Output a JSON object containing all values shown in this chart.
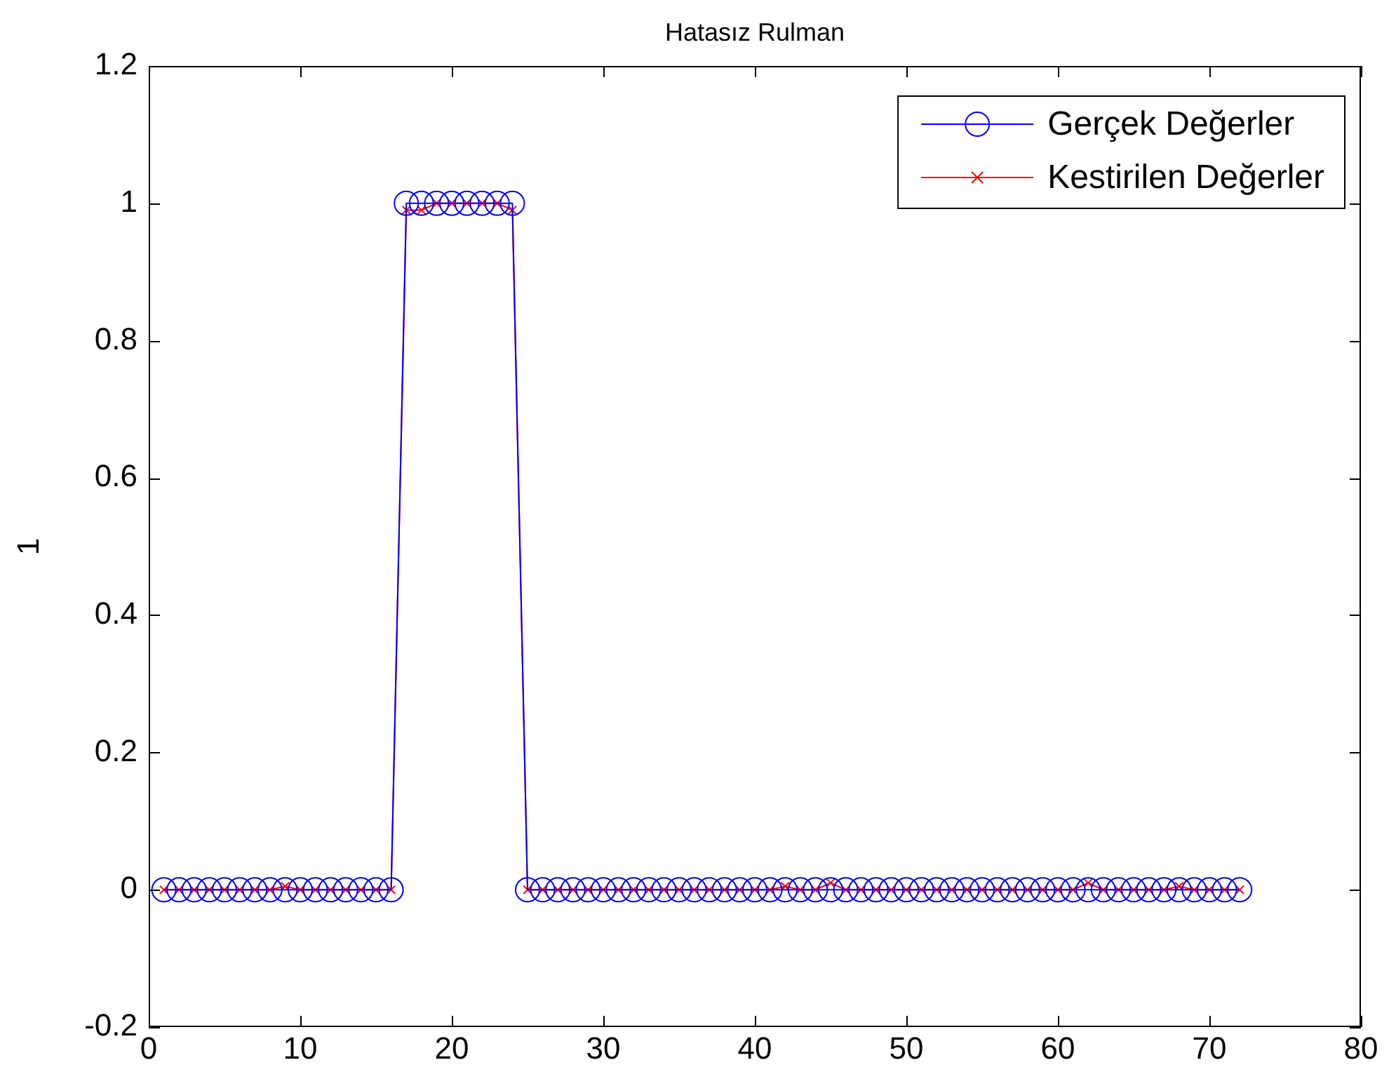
{
  "chart_data": {
    "type": "line",
    "title": "Hatasız Rulman",
    "ylabel": "1",
    "x": [
      1,
      2,
      3,
      4,
      5,
      6,
      7,
      8,
      9,
      10,
      11,
      12,
      13,
      14,
      15,
      16,
      17,
      18,
      19,
      20,
      21,
      22,
      23,
      24,
      25,
      26,
      27,
      28,
      29,
      30,
      31,
      32,
      33,
      34,
      35,
      36,
      37,
      38,
      39,
      40,
      41,
      42,
      43,
      44,
      45,
      46,
      47,
      48,
      49,
      50,
      51,
      52,
      53,
      54,
      55,
      56,
      57,
      58,
      59,
      60,
      61,
      62,
      63,
      64,
      65,
      66,
      67,
      68,
      69,
      70,
      71,
      72
    ],
    "series": [
      {
        "name": "Gerçek Değerler",
        "color": "#0000ff",
        "marker": "circle",
        "values": [
          0,
          0,
          0,
          0,
          0,
          0,
          0,
          0,
          0,
          0,
          0,
          0,
          0,
          0,
          0,
          0,
          1,
          1,
          1,
          1,
          1,
          1,
          1,
          1,
          0,
          0,
          0,
          0,
          0,
          0,
          0,
          0,
          0,
          0,
          0,
          0,
          0,
          0,
          0,
          0,
          0,
          0,
          0,
          0,
          0,
          0,
          0,
          0,
          0,
          0,
          0,
          0,
          0,
          0,
          0,
          0,
          0,
          0,
          0,
          0,
          0,
          0,
          0,
          0,
          0,
          0,
          0,
          0,
          0,
          0,
          0,
          0
        ]
      },
      {
        "name": "Kestirilen Değerler",
        "color": "#ff0000",
        "marker": "cross",
        "values": [
          0,
          0,
          0,
          0,
          0,
          0,
          0,
          0,
          0.005,
          0,
          0,
          0,
          0,
          0,
          0,
          0,
          0.99,
          0.99,
          1,
          1,
          1,
          1,
          1,
          0.99,
          0,
          0,
          0,
          0,
          0,
          0,
          0,
          0,
          0,
          0,
          0,
          0,
          0,
          0,
          0,
          0,
          0,
          0.005,
          0,
          0,
          0.01,
          0,
          0,
          0,
          0,
          0,
          0,
          0,
          0,
          0,
          0,
          0,
          0,
          0,
          0,
          0,
          0,
          0.01,
          0,
          0,
          0,
          0,
          0,
          0.005,
          0,
          0,
          0,
          0
        ]
      }
    ],
    "xlim": [
      0,
      80
    ],
    "xticks": [
      0,
      10,
      20,
      30,
      40,
      50,
      60,
      70,
      80
    ],
    "ylim": [
      -0.2,
      1.2
    ],
    "yticks": [
      -0.2,
      0,
      0.2,
      0.4,
      0.6,
      0.8,
      1,
      1.2
    ],
    "legend": "top right",
    "line_style": "solid"
  }
}
